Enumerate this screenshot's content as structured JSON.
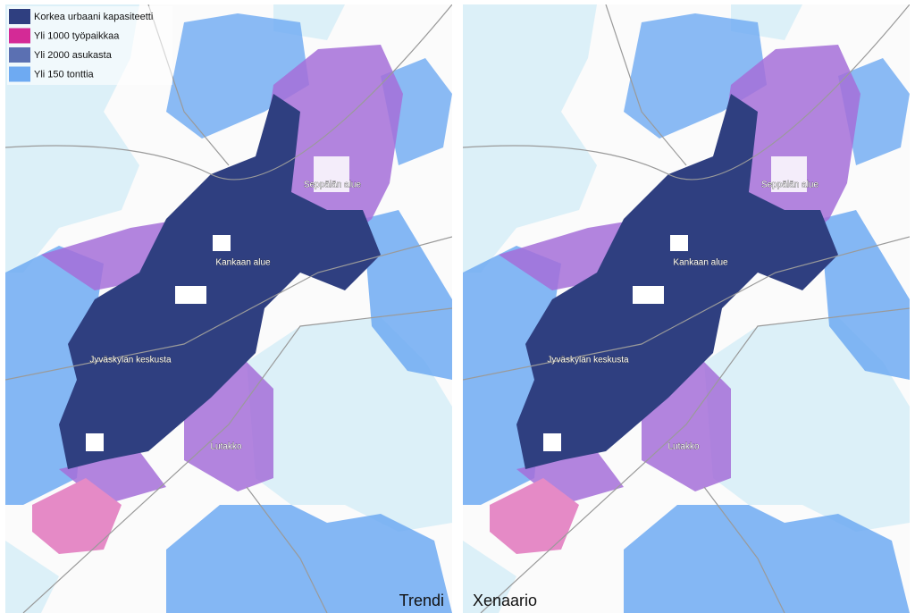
{
  "legend": [
    {
      "label": "Korkea urbaani kapasiteetti",
      "color": "#2f3f80"
    },
    {
      "label": "Yli 1000 työpaikkaa",
      "color": "#d42a96"
    },
    {
      "label": "Yli 2000 asukasta",
      "color": "#5b70b2"
    },
    {
      "label": "Yli 150 tonttia",
      "color": "#6eaaf2"
    }
  ],
  "panels": [
    {
      "title": "Trendi",
      "labels": [
        "Seppälän alue",
        "Kankaan alue",
        "Jyväskylän keskusta",
        "Lutakko"
      ]
    },
    {
      "title": "Xenaario",
      "labels": [
        "Seppälän alue",
        "Kankaan alue",
        "Jyväskylän keskusta",
        "Lutakko"
      ]
    }
  ]
}
